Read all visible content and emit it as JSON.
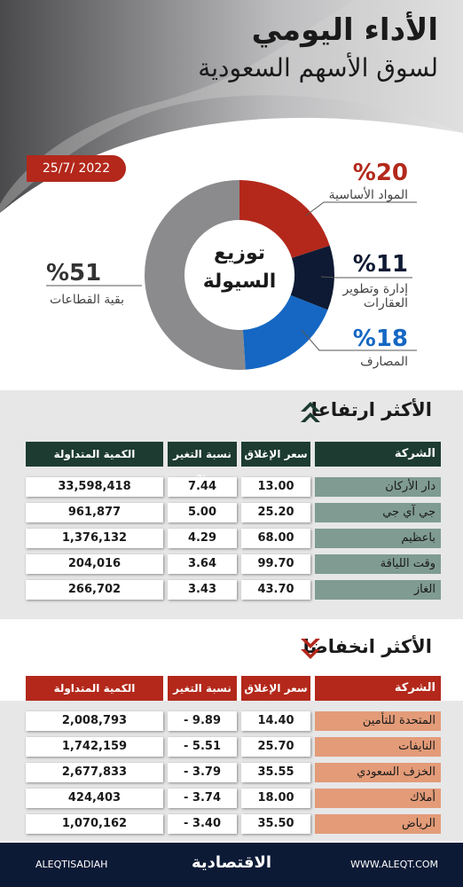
{
  "header": {
    "title": "الأداء اليومي",
    "subtitle": "لسوق الأسهم السعودية"
  },
  "date": "25/7/ 2022",
  "chart_data": {
    "type": "pie",
    "title": "توزيع السيولة",
    "categories": [
      "المواد الأساسية",
      "إدارة وتطوير العقارات",
      "المصارف",
      "بقية القطاعات"
    ],
    "values": [
      20,
      11,
      18,
      51
    ],
    "value_labels": [
      "%20",
      "%11",
      "%18",
      "%51"
    ],
    "colors": [
      "#b3281b",
      "#0e1a33",
      "#1567c3",
      "#8b8b8d"
    ]
  },
  "gainers": {
    "title": "الأكثر ارتفاعا",
    "columns": [
      "الشركة",
      "سعر الإغلاق",
      "نسبة التغير %",
      "الكمية المتداولة"
    ],
    "rows": [
      [
        "دار الأركان",
        "13.00",
        "7.44",
        "33,598,418"
      ],
      [
        "جي آي جي",
        "25.20",
        "5.00",
        "961,877"
      ],
      [
        "باعظيم",
        "68.00",
        "4.29",
        "1,376,132"
      ],
      [
        "وقت اللياقة",
        "99.70",
        "3.64",
        "204,016"
      ],
      [
        "الغاز",
        "43.70",
        "3.43",
        "266,702"
      ]
    ]
  },
  "losers": {
    "title": "الأكثر انخفاضا",
    "columns": [
      "الشركة",
      "سعر الإغلاق",
      "نسبة التغير",
      "الكمية المتداولة"
    ],
    "rows": [
      [
        "المتحدة للتأمين",
        "14.40",
        "- 9.89",
        "2,008,793"
      ],
      [
        "النايفات",
        "25.70",
        "- 5.51",
        "1,742,159"
      ],
      [
        "الخزف السعودي",
        "35.55",
        "- 3.79",
        "2,677,833"
      ],
      [
        "أملاك",
        "18.00",
        "- 3.74",
        "424,403"
      ],
      [
        "الرياض",
        "35.50",
        "- 3.40",
        "1,070,162"
      ]
    ]
  },
  "footer": {
    "handle": "ALEQTISADIAH",
    "logo": "الاقتصادية",
    "site": "WWW.ALEQT.COM"
  }
}
